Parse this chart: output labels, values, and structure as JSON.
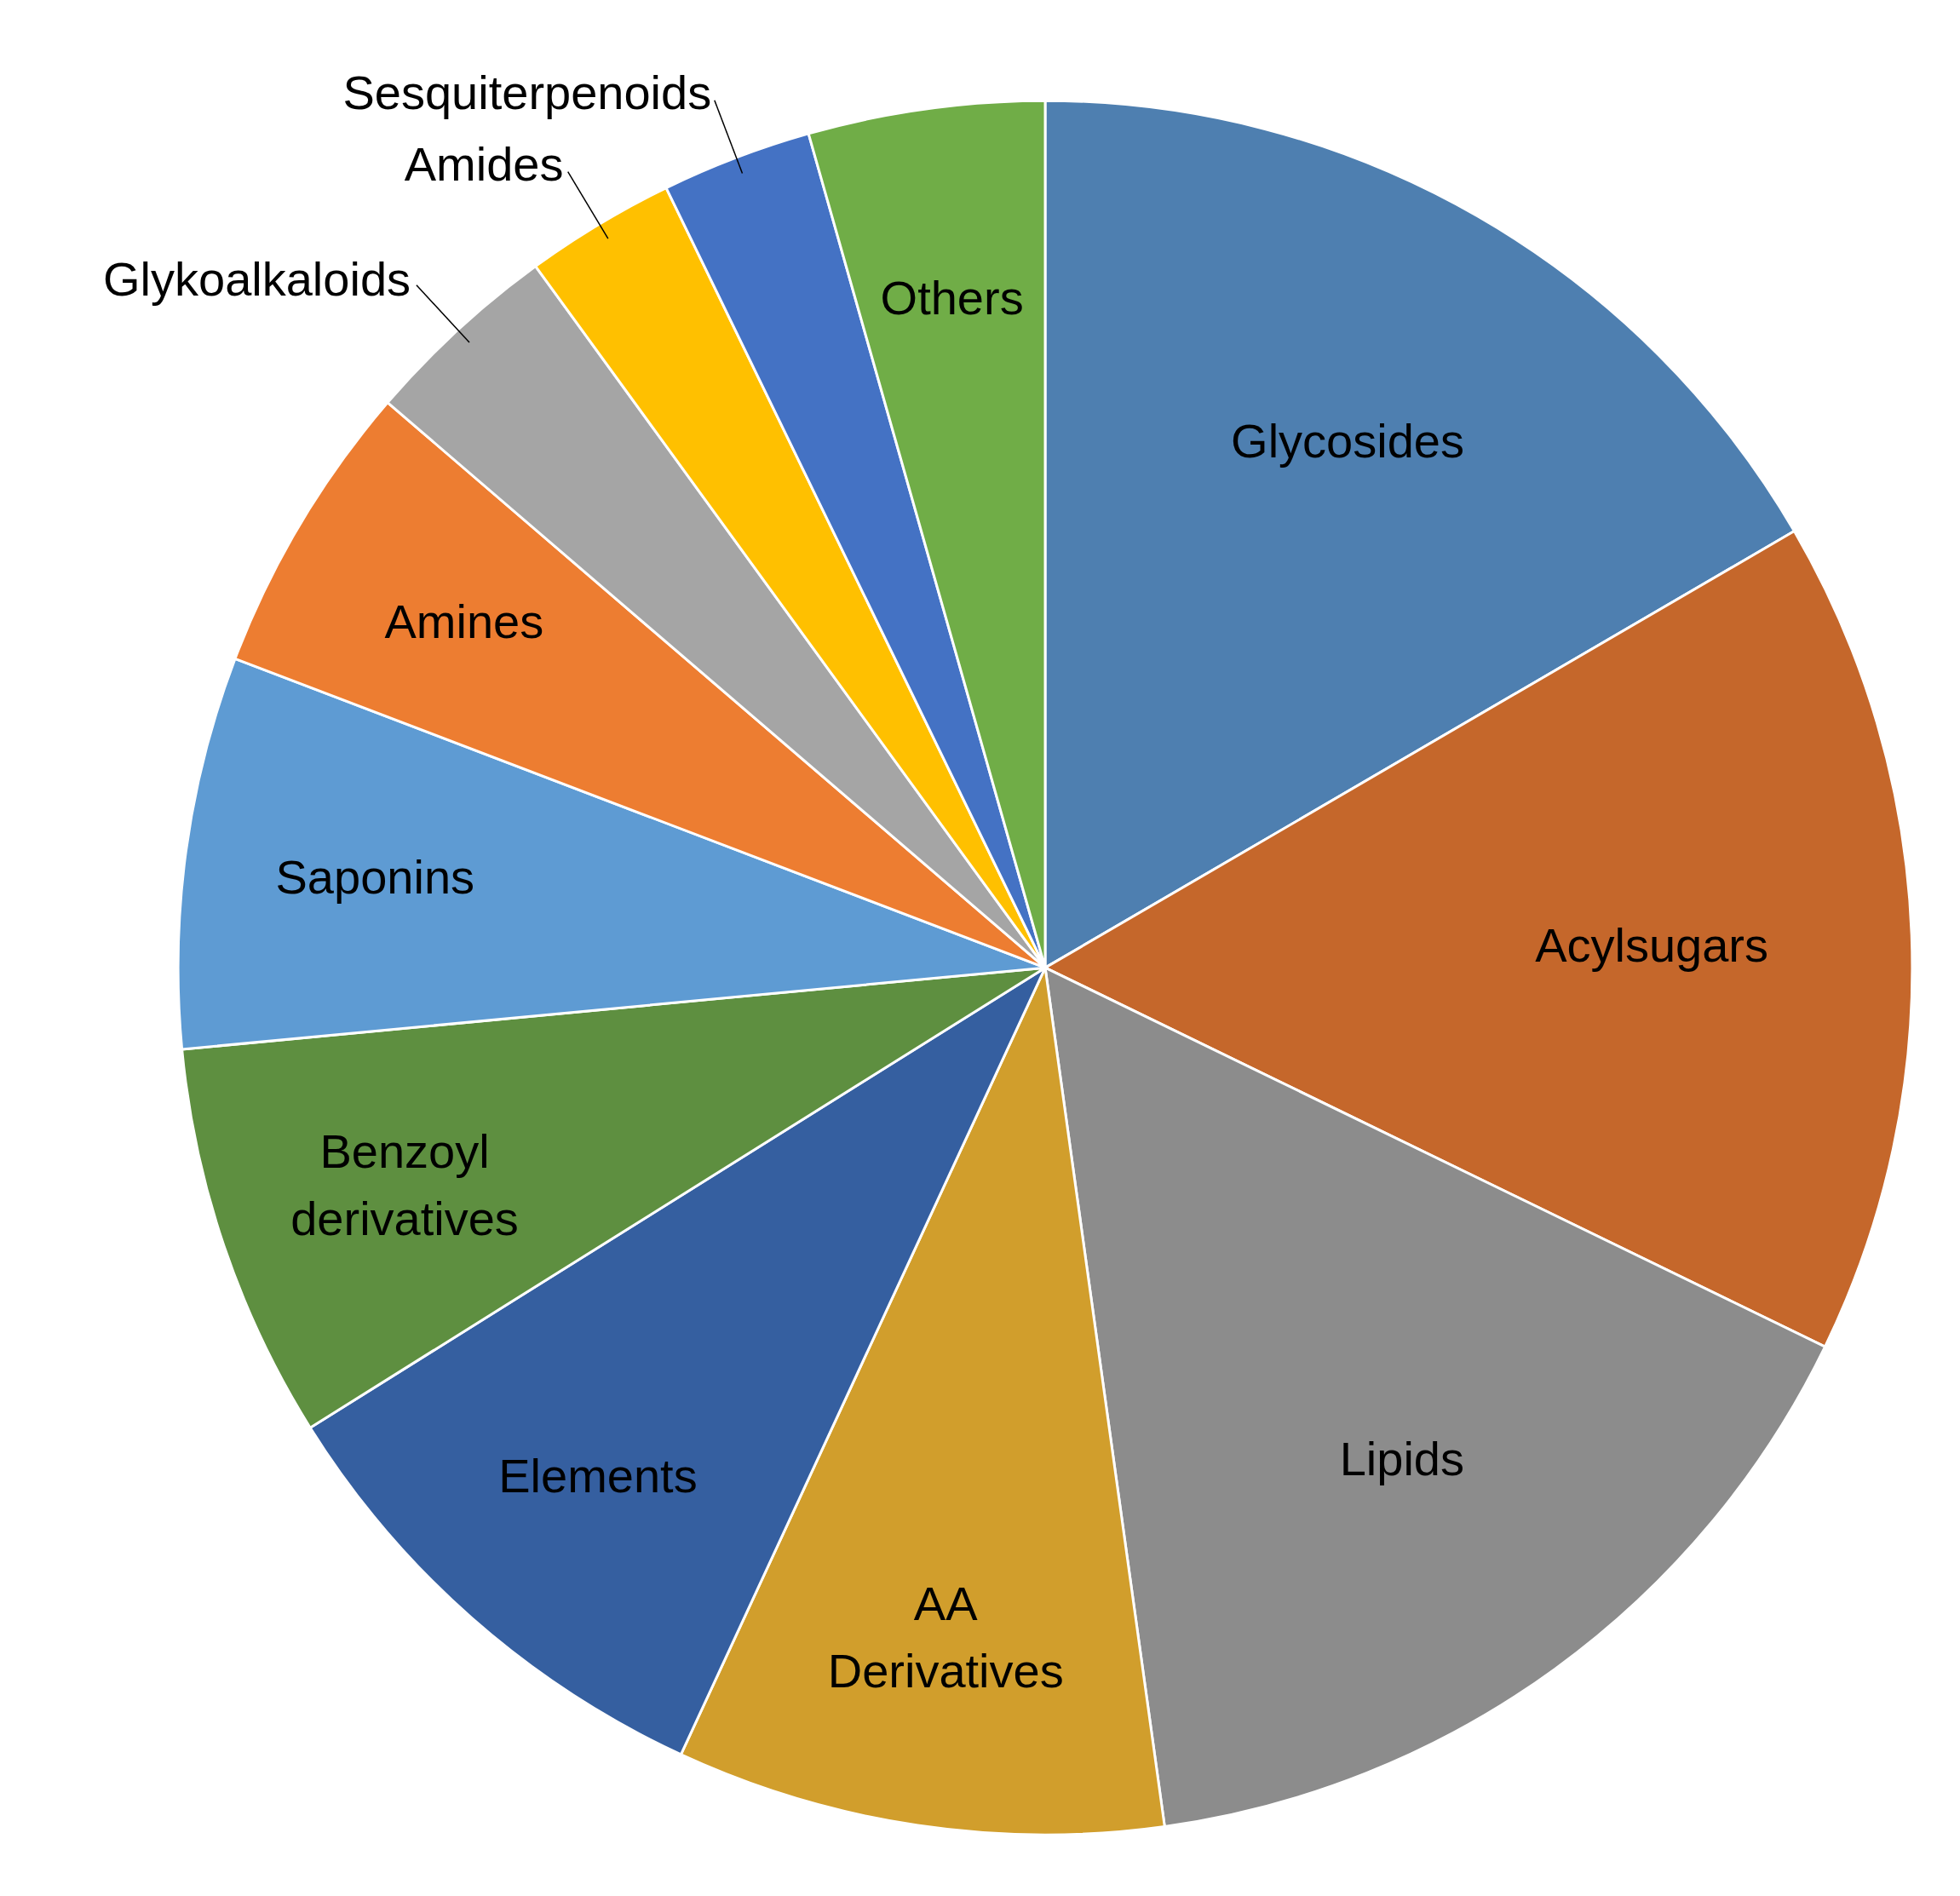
{
  "chart_data": {
    "type": "pie",
    "categories": [
      "Glycosides",
      "Acylsugars",
      "Lipids",
      "AA\nDerivatives",
      "Elements",
      "Benzoyl\nderivatives",
      "Saponins",
      "Amines",
      "Glykoalkaloids",
      "Amides",
      "Sesquiterpenoids",
      "Others"
    ],
    "values": [
      16.6,
      15.6,
      15.6,
      9.1,
      9.2,
      7.4,
      7.3,
      5.5,
      3.7,
      2.8,
      2.8,
      4.4
    ],
    "colors": [
      "#4e7fb0",
      "#c5672b",
      "#8c8c8c",
      "#d19e2c",
      "#355fa0",
      "#5e8f40",
      "#5e9bd3",
      "#ed7d31",
      "#a5a5a5",
      "#ffc000",
      "#4472c4",
      "#70ad47"
    ]
  }
}
